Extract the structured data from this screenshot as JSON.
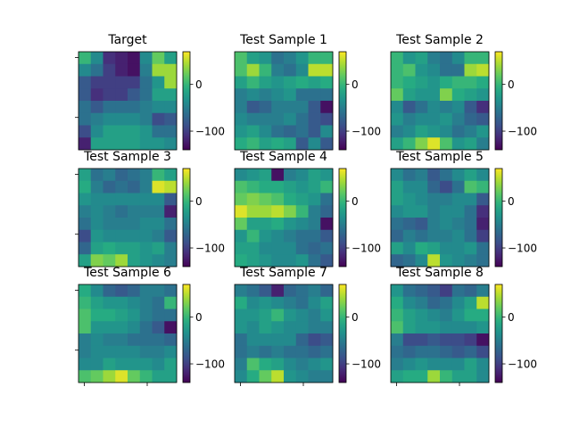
{
  "chart_data": [
    {
      "type": "heatmap",
      "title": "Target",
      "colormap": "viridis",
      "colorbar": {
        "vmin": -140,
        "vmax": 70,
        "ticks": [
          {
            "value": 0,
            "label": "0"
          },
          {
            "value": -100,
            "label": "−100"
          }
        ]
      },
      "values": [
        [
          0,
          -40,
          -110,
          -120,
          -130,
          -40,
          20,
          -20
        ],
        [
          -40,
          -60,
          -100,
          -120,
          -130,
          -50,
          40,
          40
        ],
        [
          -80,
          -100,
          -100,
          -100,
          -100,
          -60,
          -30,
          40
        ],
        [
          -80,
          -110,
          -100,
          -100,
          -80,
          -60,
          -20,
          -20
        ],
        [
          -60,
          -80,
          -60,
          -60,
          -60,
          -50,
          -40,
          -40
        ],
        [
          -60,
          -50,
          -40,
          -40,
          -40,
          -50,
          -90,
          -80
        ],
        [
          -90,
          -40,
          -20,
          -20,
          -20,
          -30,
          -60,
          -60
        ],
        [
          -120,
          -20,
          -20,
          -20,
          -20,
          -30,
          -30,
          -40
        ]
      ]
    },
    {
      "type": "heatmap",
      "title": "Test Sample 1",
      "colormap": "viridis",
      "colorbar": {
        "vmin": -140,
        "vmax": 70,
        "ticks": [
          {
            "value": 0,
            "label": "0"
          },
          {
            "value": -100,
            "label": "−100"
          }
        ]
      },
      "values": [
        [
          10,
          -20,
          -30,
          -60,
          -50,
          -30,
          0,
          0
        ],
        [
          10,
          40,
          0,
          -50,
          -60,
          -40,
          50,
          50
        ],
        [
          -20,
          0,
          -20,
          -30,
          -20,
          -10,
          -20,
          -10
        ],
        [
          -50,
          -40,
          -50,
          -40,
          -30,
          -60,
          -60,
          -60
        ],
        [
          -50,
          -80,
          -70,
          -50,
          -50,
          -50,
          -80,
          -130
        ],
        [
          -40,
          -50,
          -50,
          -50,
          -40,
          -60,
          -80,
          -90
        ],
        [
          -30,
          -20,
          -40,
          -60,
          -70,
          -60,
          -80,
          -40
        ],
        [
          -10,
          0,
          -20,
          -10,
          -20,
          -80,
          -40,
          -80
        ]
      ]
    },
    {
      "type": "heatmap",
      "title": "Test Sample 2",
      "colormap": "viridis",
      "colorbar": {
        "vmin": -140,
        "vmax": 70,
        "ticks": [
          {
            "value": 0,
            "label": "0"
          },
          {
            "value": -100,
            "label": "−100"
          }
        ]
      },
      "values": [
        [
          0,
          -30,
          -20,
          -50,
          -60,
          -40,
          0,
          0
        ],
        [
          0,
          10,
          -30,
          -40,
          -60,
          -60,
          40,
          50
        ],
        [
          0,
          -10,
          -20,
          -30,
          -10,
          0,
          0,
          -10
        ],
        [
          20,
          -20,
          -30,
          -30,
          30,
          -10,
          -20,
          -30
        ],
        [
          -40,
          -80,
          -60,
          -40,
          -50,
          -40,
          -80,
          -110
        ],
        [
          -30,
          -50,
          -40,
          -40,
          -30,
          -50,
          -70,
          -80
        ],
        [
          -50,
          -40,
          -20,
          -30,
          -40,
          -60,
          -50,
          -30
        ],
        [
          -20,
          0,
          30,
          60,
          10,
          -30,
          -20,
          -50
        ]
      ]
    },
    {
      "type": "heatmap",
      "title": "Test Sample 3",
      "colormap": "viridis",
      "colorbar": {
        "vmin": -140,
        "vmax": 70,
        "ticks": [
          {
            "value": 0,
            "label": "0"
          },
          {
            "value": -100,
            "label": "−100"
          }
        ]
      },
      "values": [
        [
          -20,
          -60,
          -50,
          -70,
          -60,
          -50,
          0,
          -20
        ],
        [
          -10,
          -50,
          -70,
          -60,
          -70,
          -50,
          60,
          50
        ],
        [
          -30,
          -40,
          -40,
          -40,
          -40,
          -40,
          -40,
          -80
        ],
        [
          -50,
          -40,
          -50,
          -60,
          -50,
          -50,
          -50,
          -120
        ],
        [
          -60,
          -40,
          -50,
          -50,
          -50,
          -40,
          -40,
          -60
        ],
        [
          -90,
          -30,
          -40,
          -40,
          -40,
          -40,
          -50,
          -80
        ],
        [
          -70,
          -20,
          -10,
          -20,
          -20,
          -30,
          -20,
          -50
        ],
        [
          -20,
          30,
          20,
          40,
          -20,
          -30,
          -40,
          -50
        ]
      ]
    },
    {
      "type": "heatmap",
      "title": "Test Sample 4",
      "colormap": "viridis",
      "colorbar": {
        "vmin": -140,
        "vmax": 70,
        "ticks": [
          {
            "value": 0,
            "label": "0"
          },
          {
            "value": -100,
            "label": "−100"
          }
        ]
      },
      "values": [
        [
          -40,
          -30,
          -20,
          -130,
          -50,
          -40,
          -20,
          -30
        ],
        [
          10,
          0,
          -10,
          -10,
          -20,
          -30,
          -20,
          0
        ],
        [
          20,
          30,
          20,
          10,
          -10,
          -20,
          -30,
          -60
        ],
        [
          60,
          40,
          40,
          50,
          30,
          0,
          -50,
          -70
        ],
        [
          20,
          -20,
          -20,
          -10,
          -30,
          -40,
          -50,
          -130
        ],
        [
          -30,
          0,
          -30,
          -40,
          -50,
          -60,
          -60,
          -80
        ],
        [
          -20,
          -20,
          -40,
          -40,
          -40,
          -60,
          -70,
          -60
        ],
        [
          -10,
          -20,
          -30,
          -40,
          -40,
          -30,
          -60,
          -80
        ]
      ]
    },
    {
      "type": "heatmap",
      "title": "Test Sample 5",
      "colormap": "viridis",
      "colorbar": {
        "vmin": -140,
        "vmax": 70,
        "ticks": [
          {
            "value": 0,
            "label": "0"
          },
          {
            "value": -100,
            "label": "−100"
          }
        ]
      },
      "values": [
        [
          -40,
          -60,
          -50,
          -80,
          -60,
          -40,
          -20,
          -40
        ],
        [
          -20,
          -40,
          -40,
          -70,
          -90,
          -60,
          10,
          0
        ],
        [
          -20,
          -30,
          -40,
          -50,
          -50,
          -40,
          -40,
          -80
        ],
        [
          -40,
          -30,
          -30,
          -50,
          -40,
          -40,
          -60,
          -110
        ],
        [
          -60,
          -70,
          -80,
          -50,
          -40,
          -50,
          -60,
          -120
        ],
        [
          -70,
          -50,
          -60,
          -50,
          -50,
          -40,
          -60,
          -100
        ],
        [
          -20,
          -40,
          -10,
          -20,
          -40,
          -40,
          -30,
          -60
        ],
        [
          -70,
          -60,
          -40,
          50,
          -30,
          -40,
          -50,
          -60
        ]
      ]
    },
    {
      "type": "heatmap",
      "title": "Test Sample 6",
      "colormap": "viridis",
      "colorbar": {
        "vmin": -140,
        "vmax": 70,
        "ticks": [
          {
            "value": 0,
            "label": "0"
          },
          {
            "value": -100,
            "label": "−100"
          }
        ]
      },
      "values": [
        [
          -10,
          -40,
          -70,
          -80,
          -70,
          -50,
          -50,
          -60
        ],
        [
          0,
          -20,
          -30,
          -30,
          -40,
          -50,
          -60,
          0
        ],
        [
          10,
          -10,
          -10,
          -20,
          -30,
          -50,
          -60,
          -60
        ],
        [
          10,
          -30,
          -30,
          -30,
          -40,
          -60,
          -80,
          -130
        ],
        [
          -50,
          -40,
          -50,
          -50,
          -60,
          -60,
          -60,
          -70
        ],
        [
          -50,
          -40,
          -40,
          -40,
          -40,
          -50,
          -50,
          -40
        ],
        [
          -40,
          -40,
          -20,
          -30,
          -30,
          -30,
          -40,
          -20
        ],
        [
          10,
          20,
          40,
          60,
          20,
          0,
          -20,
          -20
        ]
      ]
    },
    {
      "type": "heatmap",
      "title": "Test Sample 7",
      "colormap": "viridis",
      "colorbar": {
        "vmin": -140,
        "vmax": 70,
        "ticks": [
          {
            "value": 0,
            "label": "0"
          },
          {
            "value": -100,
            "label": "−100"
          }
        ]
      },
      "values": [
        [
          -50,
          -60,
          -80,
          -120,
          -70,
          -60,
          -50,
          -70
        ],
        [
          -10,
          -40,
          -30,
          -40,
          -50,
          -60,
          -40,
          -20
        ],
        [
          -30,
          -30,
          -20,
          0,
          -30,
          -40,
          -50,
          -30
        ],
        [
          -30,
          -40,
          -20,
          -30,
          -40,
          -40,
          -50,
          -50
        ],
        [
          -60,
          -40,
          -40,
          -40,
          -40,
          -70,
          -90,
          -80
        ],
        [
          -60,
          -50,
          -60,
          -50,
          -60,
          -60,
          -70,
          -60
        ],
        [
          -50,
          10,
          -10,
          -20,
          -40,
          -50,
          -40,
          -30
        ],
        [
          -40,
          -10,
          20,
          50,
          -30,
          -40,
          -50,
          -50
        ]
      ]
    },
    {
      "type": "heatmap",
      "title": "Test Sample 8",
      "colormap": "viridis",
      "colorbar": {
        "vmin": -140,
        "vmax": 70,
        "ticks": [
          {
            "value": 0,
            "label": "0"
          },
          {
            "value": -100,
            "label": "−100"
          }
        ]
      },
      "values": [
        [
          -30,
          -60,
          -70,
          -80,
          -100,
          -60,
          -70,
          -50
        ],
        [
          -10,
          -40,
          -50,
          -70,
          -60,
          -40,
          -20,
          50
        ],
        [
          0,
          -20,
          -30,
          -40,
          -50,
          -30,
          -10,
          -10
        ],
        [
          10,
          -20,
          -30,
          -30,
          -40,
          -40,
          -40,
          -30
        ],
        [
          -50,
          -90,
          -90,
          -80,
          -90,
          -90,
          -100,
          -130
        ],
        [
          -60,
          -70,
          -60,
          -60,
          -70,
          -80,
          -70,
          -90
        ],
        [
          -50,
          -40,
          -30,
          -40,
          -40,
          -40,
          -20,
          -40
        ],
        [
          -20,
          -10,
          -10,
          40,
          0,
          -20,
          -20,
          -40
        ]
      ]
    }
  ]
}
